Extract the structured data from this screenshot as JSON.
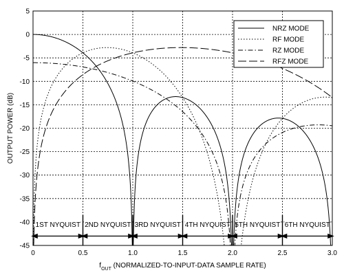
{
  "chart_data": {
    "type": "line",
    "title": "",
    "xlabel": "f",
    "xlabel_sub": "OUT",
    "xlabel_rest": " (NORMALIZED-TO-INPUT-DATA SAMPLE RATE)",
    "ylabel": "OUTPUT POWER (dB)",
    "xlim": [
      0,
      3.0
    ],
    "ylim": [
      -45,
      5
    ],
    "xticks": [
      0,
      0.5,
      1.0,
      1.5,
      2.0,
      2.5,
      3.0
    ],
    "xtick_labels": [
      "0",
      "0.5",
      "1.0",
      "1.5",
      "2.0",
      "2.5",
      "3.0"
    ],
    "yticks": [
      5,
      0,
      -5,
      -10,
      -15,
      -20,
      -25,
      -30,
      -35,
      -40,
      -45
    ],
    "ytick_labels": [
      "5",
      "0",
      "-5",
      "-10",
      "-15",
      "-20",
      "-25",
      "-30",
      "-35",
      "-40",
      "-45"
    ],
    "grid": true,
    "legend_position": "top-right",
    "series": [
      {
        "name": "NRZ MODE",
        "style": "solid",
        "color": "#000000"
      },
      {
        "name": "RF MODE",
        "style": "dotted",
        "color": "#000000"
      },
      {
        "name": "RZ MODE",
        "style": "dashdot",
        "color": "#000000"
      },
      {
        "name": "RFZ MODE",
        "style": "longdash",
        "color": "#000000"
      }
    ],
    "nyquist_zones": [
      {
        "label": "1ST NYQUIST",
        "from": 0,
        "to": 0.5
      },
      {
        "label": "2ND NYQUIST",
        "from": 0.5,
        "to": 1.0
      },
      {
        "label": "3RD NYQUIST",
        "from": 1.0,
        "to": 1.5
      },
      {
        "label": "4TH NYQUIST",
        "from": 1.5,
        "to": 2.0
      },
      {
        "label": "5TH NYQUIST",
        "from": 2.0,
        "to": 2.5
      },
      {
        "label": "6TH NYQUIST",
        "from": 2.5,
        "to": 3.0
      }
    ],
    "nyquist_arrow_y": -43
  }
}
